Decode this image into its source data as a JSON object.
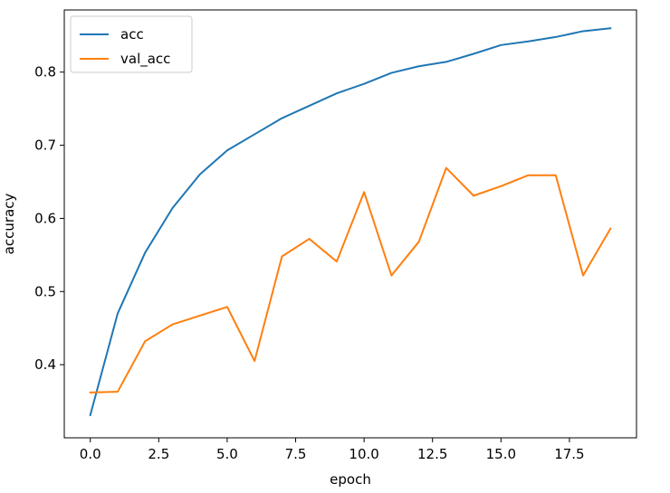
{
  "chart_data": {
    "type": "line",
    "xlabel": "epoch",
    "ylabel": "accuracy",
    "xlim": [
      -0.95,
      19.95
    ],
    "ylim": [
      0.3,
      0.885
    ],
    "xticks": [
      0,
      2.5,
      5,
      7.5,
      10,
      12.5,
      15,
      17.5
    ],
    "xtick_labels": [
      "0.0",
      "2.5",
      "5.0",
      "7.5",
      "10.0",
      "12.5",
      "15.0",
      "17.5"
    ],
    "yticks": [
      0.4,
      0.5,
      0.6,
      0.7,
      0.8
    ],
    "ytick_labels": [
      "0.4",
      "0.5",
      "0.6",
      "0.7",
      "0.8"
    ],
    "grid": false,
    "legend_position": "top-left",
    "x": [
      0,
      1,
      2,
      3,
      4,
      5,
      6,
      7,
      8,
      9,
      10,
      11,
      12,
      13,
      14,
      15,
      16,
      17,
      18,
      19
    ],
    "series": [
      {
        "name": "acc",
        "color": "#1f77b4",
        "values": [
          0.331,
          0.47,
          0.553,
          0.614,
          0.66,
          0.693,
          0.715,
          0.737,
          0.754,
          0.771,
          0.784,
          0.799,
          0.808,
          0.814,
          0.825,
          0.837,
          0.842,
          0.848,
          0.856,
          0.86
        ]
      },
      {
        "name": "val_acc",
        "color": "#ff7f0e",
        "values": [
          0.362,
          0.363,
          0.432,
          0.455,
          0.467,
          0.479,
          0.405,
          0.548,
          0.572,
          0.541,
          0.636,
          0.522,
          0.568,
          0.669,
          0.631,
          0.644,
          0.659,
          0.659,
          0.522,
          0.586
        ]
      }
    ]
  }
}
